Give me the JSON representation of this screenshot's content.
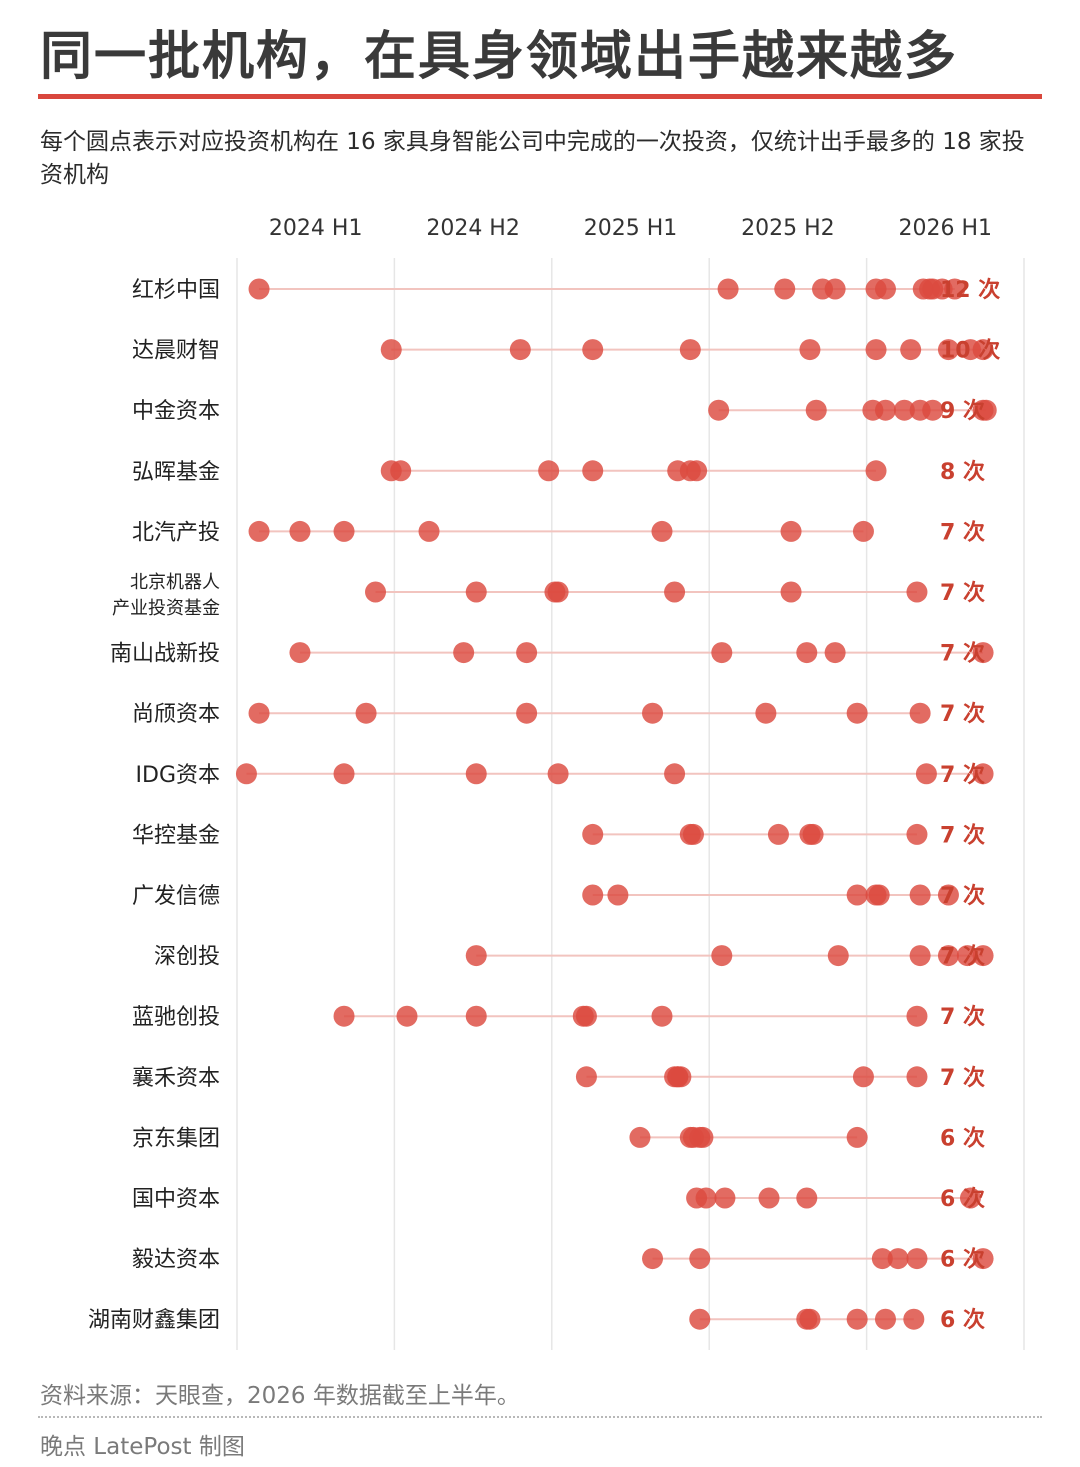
{
  "title": "同一批机构，在具身领域出手越来越多",
  "subtitle": "每个圆点表示对应投资机构在 16 家具身智能公司中完成的一次投资，仅统计出手最多的 18 家投资机构",
  "footer": {
    "source": "资料来源：天眼查，2026 年数据截至上半年。",
    "credit": "晚点 LatePost 制图"
  },
  "colors": {
    "accent": "#d9473d",
    "dot": "#dc4a3f",
    "connector": "#f2c4bf",
    "grid": "#e6e6e6",
    "count_label": "#c9402f"
  },
  "chart_data": {
    "type": "scatter",
    "xlim": [
      2024.0,
      2026.5
    ],
    "x_ticks": [
      {
        "value": 2024.25,
        "label": "2024 H1"
      },
      {
        "value": 2024.75,
        "label": "2024 H2"
      },
      {
        "value": 2025.25,
        "label": "2025 H1"
      },
      {
        "value": 2025.75,
        "label": "2025 H2"
      },
      {
        "value": 2026.25,
        "label": "2026 H1"
      }
    ],
    "series": [
      {
        "name": "红杉中国",
        "count_label": "12 次",
        "values": [
          2024.07,
          2025.56,
          2025.74,
          2025.86,
          2025.9,
          2026.03,
          2026.06,
          2026.18,
          2026.21,
          2026.24,
          2026.28,
          2026.2
        ]
      },
      {
        "name": "达晨财智",
        "count_label": "10 次",
        "values": [
          2024.49,
          2024.9,
          2025.13,
          2025.44,
          2025.82,
          2026.03,
          2026.14,
          2026.26,
          2026.33,
          2026.37
        ]
      },
      {
        "name": "中金资本",
        "count_label": "9 次",
        "values": [
          2025.53,
          2025.84,
          2026.02,
          2026.06,
          2026.12,
          2026.17,
          2026.21,
          2026.37,
          2026.38
        ]
      },
      {
        "name": "弘晖基金",
        "count_label": "8 次",
        "values": [
          2024.49,
          2024.52,
          2024.99,
          2025.13,
          2025.4,
          2025.44,
          2025.46,
          2026.03
        ]
      },
      {
        "name": "北汽产投",
        "count_label": "7 次",
        "values": [
          2024.07,
          2024.2,
          2024.34,
          2024.61,
          2025.35,
          2025.76,
          2025.99
        ]
      },
      {
        "name": "北京机器人\n产业投资基金",
        "count_label": "7 次",
        "values": [
          2024.44,
          2024.76,
          2025.01,
          2025.02,
          2025.39,
          2025.76,
          2026.16
        ]
      },
      {
        "name": "南山战新投",
        "count_label": "7 次",
        "values": [
          2024.2,
          2024.72,
          2024.92,
          2025.54,
          2025.81,
          2025.9,
          2026.37
        ]
      },
      {
        "name": "尚颀资本",
        "count_label": "7 次",
        "values": [
          2024.07,
          2024.41,
          2024.92,
          2025.32,
          2025.68,
          2025.97,
          2026.17
        ]
      },
      {
        "name": "IDG资本",
        "count_label": "7 次",
        "values": [
          2024.03,
          2024.34,
          2024.76,
          2025.02,
          2025.39,
          2026.19,
          2026.37
        ]
      },
      {
        "name": "华控基金",
        "count_label": "7 次",
        "values": [
          2025.13,
          2025.44,
          2025.45,
          2025.72,
          2025.82,
          2025.83,
          2026.16
        ]
      },
      {
        "name": "广发信德",
        "count_label": "7 次",
        "values": [
          2025.13,
          2025.21,
          2025.97,
          2026.03,
          2026.04,
          2026.17,
          2026.26
        ]
      },
      {
        "name": "深创投",
        "count_label": "7 次",
        "values": [
          2024.76,
          2025.54,
          2025.91,
          2026.17,
          2026.26,
          2026.32,
          2026.37
        ]
      },
      {
        "name": "蓝驰创投",
        "count_label": "7 次",
        "values": [
          2024.34,
          2024.54,
          2024.76,
          2025.1,
          2025.11,
          2025.35,
          2026.16
        ]
      },
      {
        "name": "襄禾资本",
        "count_label": "7 次",
        "values": [
          2025.11,
          2025.39,
          2025.4,
          2025.41,
          2025.99,
          2026.16,
          2025.4
        ]
      },
      {
        "name": "京东集团",
        "count_label": "6 次",
        "values": [
          2025.28,
          2025.44,
          2025.45,
          2025.48,
          2025.47,
          2025.97
        ]
      },
      {
        "name": "国中资本",
        "count_label": "6 次",
        "values": [
          2025.46,
          2025.49,
          2025.55,
          2025.69,
          2025.81,
          2026.33
        ]
      },
      {
        "name": "毅达资本",
        "count_label": "6 次",
        "values": [
          2025.32,
          2025.47,
          2026.05,
          2026.1,
          2026.16,
          2026.37
        ]
      },
      {
        "name": "湖南财鑫集团",
        "count_label": "6 次",
        "values": [
          2025.47,
          2025.81,
          2025.82,
          2025.97,
          2026.06,
          2026.15
        ]
      }
    ]
  }
}
